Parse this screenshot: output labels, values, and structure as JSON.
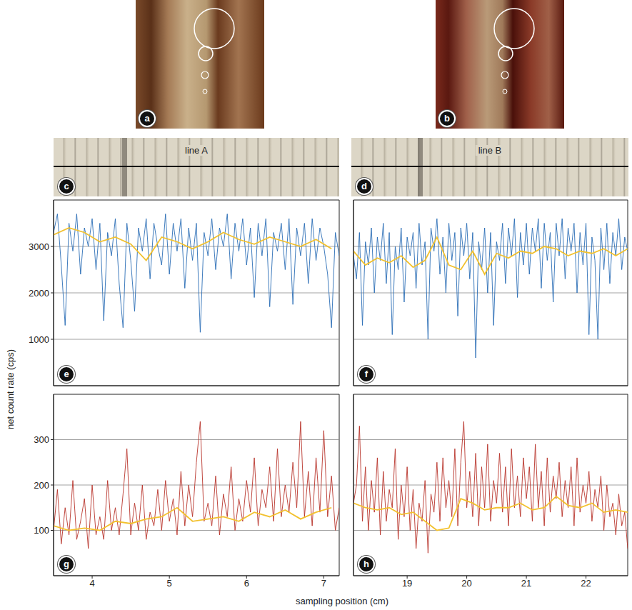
{
  "y_label": "net count rate (cps)",
  "x_label": "sampling position (cm)",
  "images": [
    {
      "panel": "a"
    },
    {
      "panel": "b"
    },
    {
      "panel": "c",
      "label": "line A"
    },
    {
      "panel": "d",
      "label": "line B"
    }
  ],
  "chart_data": [
    {
      "panel": "e",
      "type": "line",
      "xlim": [
        3.5,
        7.2
      ],
      "xticks": [
        4,
        5,
        6,
        7
      ],
      "ylim": [
        0,
        4000
      ],
      "yticks": [
        1000,
        2000,
        3000
      ],
      "grid": true,
      "tick_labels": "y",
      "series": [
        {
          "color": "#2a6db5",
          "x": [
            3.5,
            3.55,
            3.6,
            3.65,
            3.7,
            3.75,
            3.8,
            3.85,
            3.9,
            3.95,
            4,
            4.05,
            4.1,
            4.15,
            4.2,
            4.25,
            4.3,
            4.35,
            4.4,
            4.45,
            4.5,
            4.55,
            4.6,
            4.65,
            4.7,
            4.75,
            4.8,
            4.85,
            4.9,
            4.95,
            5,
            5.05,
            5.1,
            5.15,
            5.2,
            5.25,
            5.3,
            5.35,
            5.4,
            5.45,
            5.5,
            5.55,
            5.6,
            5.65,
            5.7,
            5.75,
            5.8,
            5.85,
            5.9,
            5.95,
            6,
            6.05,
            6.1,
            6.15,
            6.2,
            6.25,
            6.3,
            6.35,
            6.4,
            6.45,
            6.5,
            6.55,
            6.6,
            6.65,
            6.7,
            6.75,
            6.8,
            6.85,
            6.9,
            6.95,
            7,
            7.05,
            7.1,
            7.15,
            7.2
          ],
          "values": [
            3300,
            3700,
            2600,
            1300,
            3500,
            2900,
            3700,
            2400,
            3400,
            3000,
            3600,
            2500,
            3500,
            1400,
            3300,
            2800,
            3600,
            2200,
            1250,
            3500,
            2700,
            1600,
            3400,
            2900,
            3600,
            2300,
            3500,
            3000,
            2600,
            3700,
            2400,
            3500,
            2900,
            3600,
            2100,
            3400,
            2700,
            3500,
            1150,
            3300,
            2800,
            3600,
            2500,
            3400,
            3000,
            3700,
            2300,
            3500,
            2900,
            3600,
            2600,
            3400,
            1900,
            3500,
            2800,
            3600,
            1700,
            3300,
            2900,
            3500,
            2500,
            3600,
            1750,
            3400,
            2800,
            3500,
            2200,
            3600,
            2700,
            3400,
            3000,
            2400,
            1250,
            3300,
            2800
          ]
        },
        {
          "color": "#f2c12e",
          "x": [
            3.5,
            3.7,
            3.9,
            4.1,
            4.3,
            4.5,
            4.7,
            4.9,
            5.1,
            5.3,
            5.5,
            5.7,
            5.9,
            6.1,
            6.3,
            6.5,
            6.7,
            6.9,
            7.1
          ],
          "values": [
            3250,
            3400,
            3300,
            3100,
            3200,
            3050,
            2700,
            3200,
            3100,
            2950,
            3100,
            3300,
            3150,
            3050,
            3200,
            3100,
            3000,
            3150,
            2950
          ]
        }
      ]
    },
    {
      "panel": "f",
      "type": "line",
      "xlim": [
        18.1,
        22.7
      ],
      "xticks": [
        19,
        20,
        21,
        22
      ],
      "ylim": [
        0,
        4000
      ],
      "yticks": [
        1000,
        2000,
        3000
      ],
      "grid": true,
      "tick_labels": false,
      "series": [
        {
          "color": "#2a6db5",
          "x": [
            18.1,
            18.15,
            18.2,
            18.25,
            18.3,
            18.35,
            18.4,
            18.45,
            18.5,
            18.55,
            18.6,
            18.65,
            18.7,
            18.75,
            18.8,
            18.85,
            18.9,
            18.95,
            19,
            19.05,
            19.1,
            19.15,
            19.2,
            19.25,
            19.3,
            19.35,
            19.4,
            19.45,
            19.5,
            19.55,
            19.6,
            19.65,
            19.7,
            19.75,
            19.8,
            19.85,
            19.9,
            19.95,
            20,
            20.05,
            20.1,
            20.15,
            20.2,
            20.25,
            20.3,
            20.35,
            20.4,
            20.45,
            20.5,
            20.55,
            20.6,
            20.65,
            20.7,
            20.75,
            20.8,
            20.85,
            20.9,
            20.95,
            21,
            21.05,
            21.1,
            21.15,
            21.2,
            21.25,
            21.3,
            21.35,
            21.4,
            21.45,
            21.5,
            21.55,
            21.6,
            21.65,
            21.7,
            21.75,
            21.8,
            21.85,
            21.9,
            21.95,
            22,
            22.05,
            22.1,
            22.15,
            22.2,
            22.25,
            22.3,
            22.35,
            22.4,
            22.45,
            22.5,
            22.55,
            22.6,
            22.65,
            22.7
          ],
          "values": [
            2800,
            2300,
            3300,
            1300,
            3100,
            2600,
            3400,
            2000,
            3200,
            2700,
            3500,
            2200,
            3300,
            1100,
            3000,
            2500,
            3400,
            1800,
            3200,
            2800,
            3300,
            2100,
            3500,
            2600,
            3100,
            1000,
            3400,
            2900,
            3600,
            2400,
            3200,
            2000,
            3500,
            2700,
            3300,
            1500,
            3400,
            2800,
            3500,
            2300,
            3300,
            600,
            3100,
            2500,
            3400,
            2000,
            3300,
            1300,
            3100,
            2700,
            3500,
            2200,
            3400,
            2800,
            3600,
            1900,
            3300,
            2600,
            3500,
            2400,
            3400,
            2900,
            3600,
            2100,
            3500,
            2700,
            3300,
            1800,
            3500,
            2800,
            3600,
            2300,
            3400,
            2900,
            3500,
            2000,
            3300,
            2600,
            3500,
            1100,
            3200,
            2700,
            1000,
            3400,
            2500,
            3500,
            2200,
            3300,
            2800,
            3600,
            2500,
            3200,
            2900
          ]
        },
        {
          "color": "#f2c12e",
          "x": [
            18.1,
            18.3,
            18.5,
            18.7,
            18.9,
            19.1,
            19.3,
            19.5,
            19.7,
            19.9,
            20.1,
            20.3,
            20.5,
            20.7,
            20.9,
            21.1,
            21.3,
            21.5,
            21.7,
            21.9,
            22.1,
            22.3,
            22.5,
            22.7
          ],
          "values": [
            2900,
            2600,
            2750,
            2650,
            2800,
            2550,
            2700,
            3200,
            2600,
            2500,
            2900,
            2400,
            2850,
            2750,
            2900,
            2850,
            3000,
            2950,
            2800,
            2900,
            2850,
            2950,
            2800,
            2950
          ]
        }
      ]
    },
    {
      "panel": "g",
      "type": "line",
      "xlim": [
        3.5,
        7.2
      ],
      "xticks": [
        4,
        5,
        6,
        7
      ],
      "ylim": [
        0,
        400
      ],
      "yticks": [
        100,
        200,
        300
      ],
      "grid": true,
      "tick_labels": true,
      "series": [
        {
          "color": "#b8332a",
          "x": [
            3.5,
            3.55,
            3.6,
            3.65,
            3.7,
            3.75,
            3.8,
            3.85,
            3.9,
            3.95,
            4,
            4.05,
            4.1,
            4.15,
            4.2,
            4.25,
            4.3,
            4.35,
            4.4,
            4.45,
            4.5,
            4.55,
            4.6,
            4.65,
            4.7,
            4.75,
            4.8,
            4.85,
            4.9,
            4.95,
            5,
            5.05,
            5.1,
            5.15,
            5.2,
            5.25,
            5.3,
            5.35,
            5.4,
            5.45,
            5.5,
            5.55,
            5.6,
            5.65,
            5.7,
            5.75,
            5.8,
            5.85,
            5.9,
            5.95,
            6,
            6.05,
            6.1,
            6.15,
            6.2,
            6.25,
            6.3,
            6.35,
            6.4,
            6.45,
            6.5,
            6.55,
            6.6,
            6.65,
            6.7,
            6.75,
            6.8,
            6.85,
            6.9,
            6.95,
            7,
            7.05,
            7.1,
            7.15,
            7.2
          ],
          "values": [
            100,
            190,
            70,
            150,
            90,
            210,
            80,
            120,
            170,
            60,
            200,
            90,
            130,
            80,
            210,
            100,
            150,
            90,
            180,
            280,
            90,
            160,
            100,
            200,
            80,
            140,
            110,
            190,
            100,
            210,
            120,
            170,
            90,
            230,
            110,
            200,
            130,
            250,
            340,
            120,
            160,
            110,
            220,
            90,
            180,
            130,
            240,
            100,
            170,
            120,
            210,
            140,
            260,
            110,
            190,
            150,
            240,
            120,
            280,
            130,
            200,
            140,
            250,
            150,
            340,
            130,
            230,
            110,
            260,
            140,
            320,
            130,
            220,
            100,
            150
          ]
        },
        {
          "color": "#f2c12e",
          "x": [
            3.5,
            3.7,
            3.9,
            4.1,
            4.3,
            4.5,
            4.7,
            4.9,
            5.1,
            5.3,
            5.5,
            5.7,
            5.9,
            6.1,
            6.3,
            6.5,
            6.7,
            6.9,
            7.1
          ],
          "values": [
            110,
            100,
            105,
            100,
            120,
            115,
            125,
            130,
            150,
            120,
            125,
            130,
            120,
            140,
            130,
            145,
            125,
            140,
            150
          ]
        }
      ]
    },
    {
      "panel": "h",
      "type": "line",
      "xlim": [
        18.1,
        22.7
      ],
      "xticks": [
        19,
        20,
        21,
        22
      ],
      "ylim": [
        0,
        400
      ],
      "yticks": [
        100,
        200,
        300
      ],
      "grid": true,
      "tick_labels": "x",
      "series": [
        {
          "color": "#b8332a",
          "x": [
            18.1,
            18.15,
            18.2,
            18.25,
            18.3,
            18.35,
            18.4,
            18.45,
            18.5,
            18.55,
            18.6,
            18.65,
            18.7,
            18.75,
            18.8,
            18.85,
            18.9,
            18.95,
            19,
            19.05,
            19.1,
            19.15,
            19.2,
            19.25,
            19.3,
            19.35,
            19.4,
            19.45,
            19.5,
            19.55,
            19.6,
            19.65,
            19.7,
            19.75,
            19.8,
            19.85,
            19.9,
            19.95,
            20,
            20.05,
            20.1,
            20.15,
            20.2,
            20.25,
            20.3,
            20.35,
            20.4,
            20.45,
            20.5,
            20.55,
            20.6,
            20.65,
            20.7,
            20.75,
            20.8,
            20.85,
            20.9,
            20.95,
            21,
            21.05,
            21.1,
            21.15,
            21.2,
            21.25,
            21.3,
            21.35,
            21.4,
            21.45,
            21.5,
            21.55,
            21.6,
            21.65,
            21.7,
            21.75,
            21.8,
            21.85,
            21.9,
            21.95,
            22,
            22.05,
            22.1,
            22.15,
            22.2,
            22.25,
            22.3,
            22.35,
            22.4,
            22.45,
            22.5,
            22.55,
            22.6,
            22.65,
            22.7
          ],
          "values": [
            160,
            200,
            330,
            120,
            240,
            100,
            210,
            140,
            260,
            90,
            230,
            120,
            190,
            150,
            280,
            80,
            200,
            130,
            240,
            100,
            190,
            60,
            160,
            120,
            210,
            50,
            180,
            140,
            250,
            120,
            260,
            150,
            210,
            130,
            280,
            110,
            250,
            340,
            150,
            230,
            130,
            270,
            110,
            240,
            150,
            290,
            120,
            210,
            160,
            270,
            140,
            240,
            110,
            280,
            150,
            220,
            130,
            260,
            170,
            240,
            120,
            290,
            150,
            230,
            110,
            260,
            140,
            220,
            170,
            250,
            130,
            210,
            150,
            240,
            110,
            260,
            140,
            200,
            160,
            230,
            120,
            190,
            150,
            220,
            100,
            200,
            130,
            160,
            90,
            180,
            110,
            140,
            60
          ]
        },
        {
          "color": "#f2c12e",
          "x": [
            18.1,
            18.3,
            18.5,
            18.7,
            18.9,
            19.1,
            19.3,
            19.5,
            19.7,
            19.9,
            20.1,
            20.3,
            20.5,
            20.7,
            20.9,
            21.1,
            21.3,
            21.5,
            21.7,
            21.9,
            22.1,
            22.3,
            22.5,
            22.7
          ],
          "values": [
            160,
            150,
            145,
            150,
            135,
            140,
            120,
            100,
            105,
            170,
            160,
            145,
            150,
            150,
            160,
            145,
            150,
            175,
            155,
            150,
            160,
            140,
            145,
            140
          ]
        }
      ]
    }
  ]
}
